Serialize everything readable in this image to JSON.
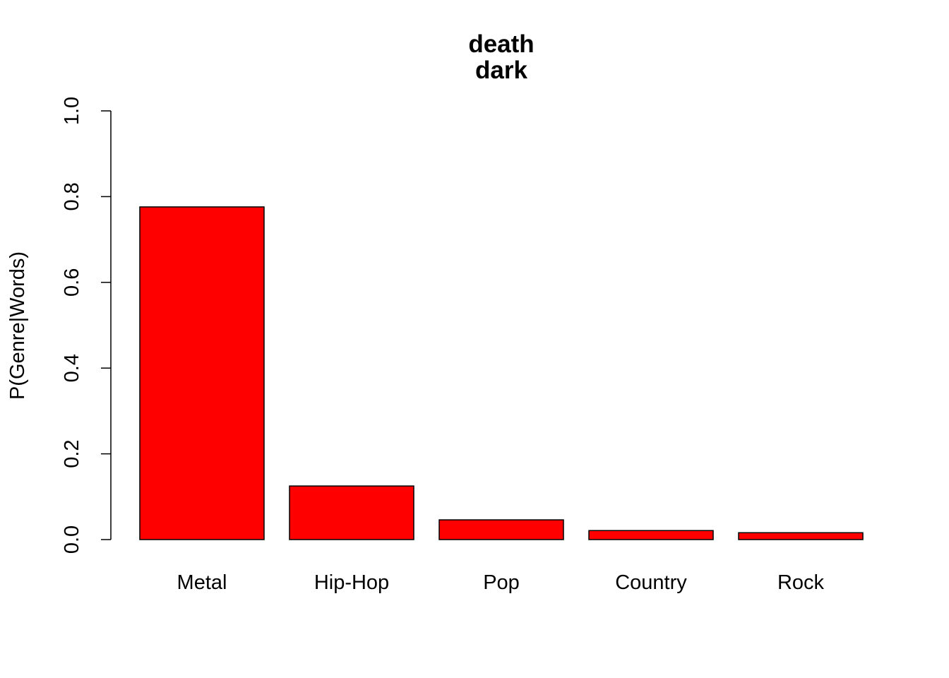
{
  "chart_data": {
    "type": "bar",
    "title_lines": [
      "death",
      "dark"
    ],
    "xlabel": "",
    "ylabel": "P(Genre|Words)",
    "categories": [
      "Metal",
      "Hip-Hop",
      "Pop",
      "Country",
      "Rock"
    ],
    "values": [
      0.776,
      0.125,
      0.046,
      0.021,
      0.016
    ],
    "ylim": [
      0,
      1
    ],
    "yticks": [
      0,
      0.2,
      0.4,
      0.6,
      0.8,
      1
    ],
    "ytick_labels": [
      "0.0",
      "0.2",
      "0.4",
      "0.6",
      "0.8",
      "1.0"
    ],
    "bar_color": "#ff0000",
    "grid": false,
    "legend": "none"
  }
}
